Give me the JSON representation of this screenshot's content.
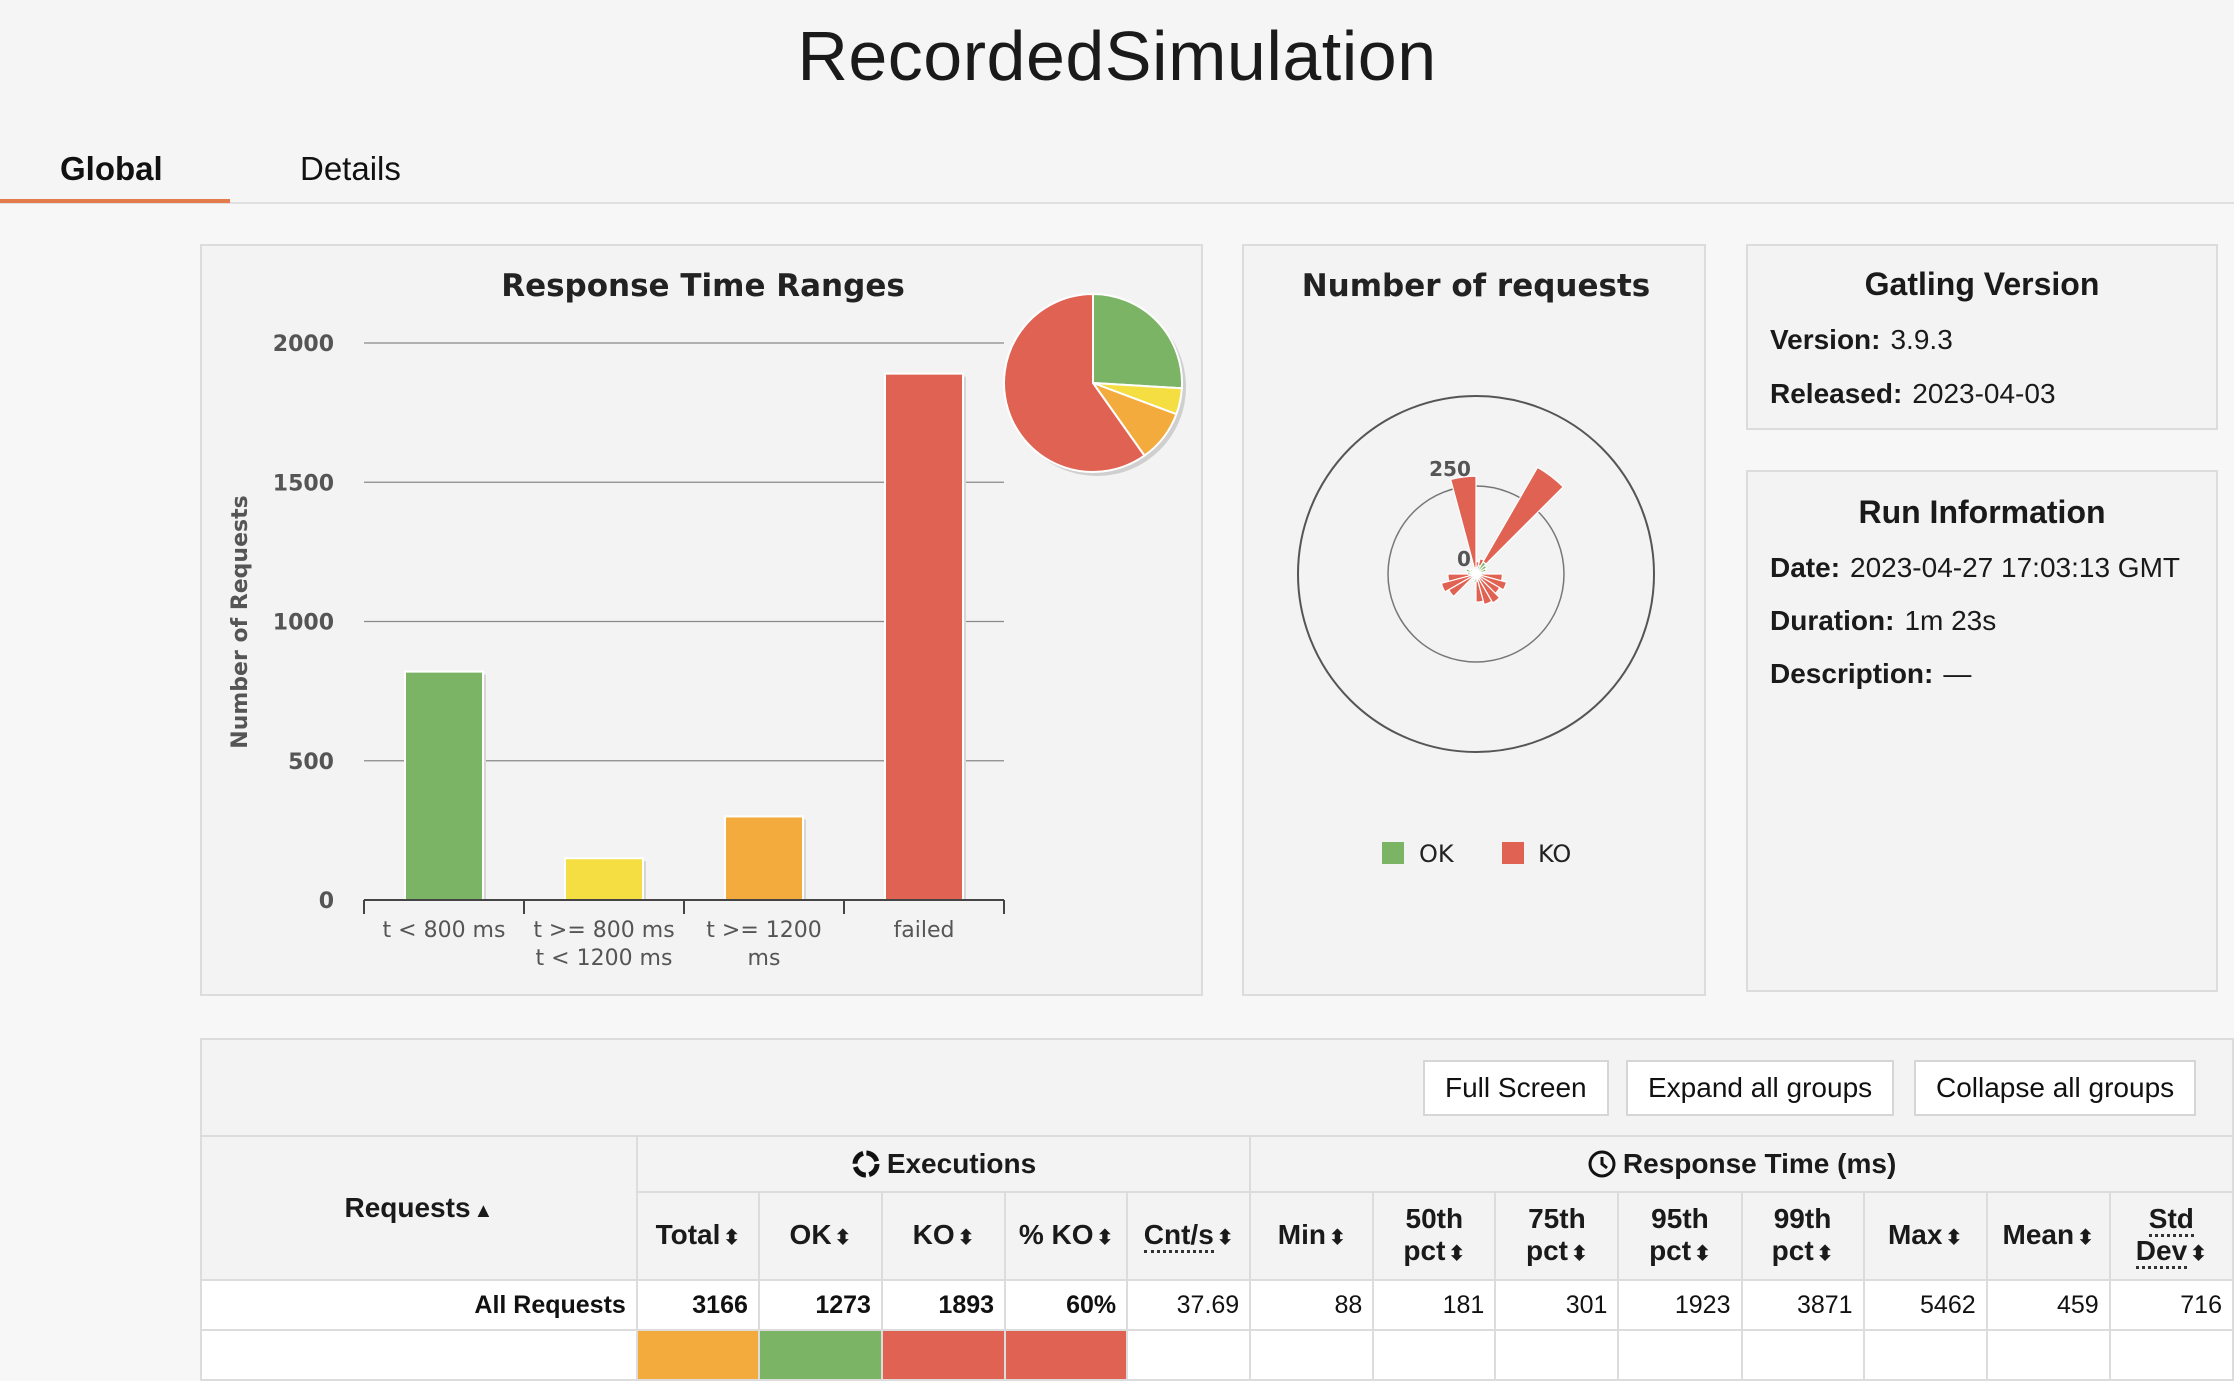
{
  "app": {
    "title": "RecordedSimulation"
  },
  "tabs": [
    {
      "label": "Global"
    },
    {
      "label": "Details"
    }
  ],
  "colors": {
    "ok": "#7bb465",
    "yellow": "#f4de42",
    "orange": "#f2ab3c",
    "ko": "#e06252",
    "accent": "#e37b4c"
  },
  "response_time_ranges": {
    "title": "Response Time Ranges",
    "ylabel": "Number of Requests",
    "yticks": [
      "0",
      "500",
      "1000",
      "1500",
      "2000"
    ],
    "categories": [
      {
        "line1": "t < 800 ms",
        "line2": ""
      },
      {
        "line1": "t >= 800 ms",
        "line2": "t < 1200 ms"
      },
      {
        "line1": "t >= 1200",
        "line2": "ms"
      },
      {
        "line1": "failed",
        "line2": ""
      }
    ]
  },
  "number_of_requests": {
    "title": "Number of requests",
    "axis_labels": [
      "250",
      "0"
    ],
    "legend": [
      {
        "label": "OK",
        "color": "#7bb465"
      },
      {
        "label": "KO",
        "color": "#e06252"
      }
    ]
  },
  "gatling_version": {
    "title": "Gatling Version",
    "version_label": "Version:",
    "version": "3.9.3",
    "released_label": "Released:",
    "released": "2023-04-03"
  },
  "run_info": {
    "title": "Run Information",
    "date_label": "Date:",
    "date": "2023-04-27 17:03:13 GMT",
    "duration_label": "Duration:",
    "duration": "1m 23s",
    "description_label": "Description:",
    "description": "—"
  },
  "buttons": {
    "full_screen": "Full Screen",
    "expand_all": "Expand all groups",
    "collapse_all": "Collapse all groups"
  },
  "table": {
    "requests_header": "Requests",
    "executions_header": "Executions",
    "response_time_header": "Response Time (ms)",
    "columns": {
      "total": "Total",
      "ok": "OK",
      "ko": "KO",
      "pct_ko": "% KO",
      "cnt_s": "Cnt/s",
      "min": "Min",
      "p50a": "50th",
      "p50b": "pct",
      "p75a": "75th",
      "p75b": "pct",
      "p95a": "95th",
      "p95b": "pct",
      "p99a": "99th",
      "p99b": "pct",
      "max": "Max",
      "mean": "Mean",
      "stdA": "Std",
      "stdB": "Dev"
    },
    "rows": [
      {
        "name": "All Requests",
        "total": "3166",
        "ok": "1273",
        "ko": "1893",
        "pct_ko": "60%",
        "cnt_s": "37.69",
        "min": "88",
        "p50": "181",
        "p75": "301",
        "p95": "1923",
        "p99": "3871",
        "max": "5462",
        "mean": "459",
        "std": "716"
      }
    ]
  },
  "chart_data": [
    {
      "type": "bar",
      "title": "Response Time Ranges",
      "categories": [
        "t < 800 ms",
        "t >= 800 ms t < 1200 ms",
        "t >= 1200 ms",
        "failed"
      ],
      "values": [
        820,
        150,
        300,
        1890
      ],
      "colors": [
        "#7bb465",
        "#f4de42",
        "#f2ab3c",
        "#e06252"
      ],
      "xlabel": "",
      "ylabel": "Number of Requests",
      "ylim": [
        0,
        2000
      ],
      "grid": true
    },
    {
      "type": "pie",
      "categories": [
        "t < 800 ms",
        "t >= 800 ms t < 1200 ms",
        "t >= 1200 ms",
        "failed"
      ],
      "values": [
        820,
        150,
        300,
        1890
      ],
      "colors": [
        "#7bb465",
        "#f4de42",
        "#f2ab3c",
        "#e06252"
      ]
    },
    {
      "type": "polar",
      "title": "Number of requests",
      "axis_labels": [
        "250",
        "0"
      ],
      "series": [
        {
          "name": "OK",
          "color": "#7bb465",
          "values": [
            20,
            25,
            40,
            35,
            30,
            20,
            15,
            10,
            8,
            10,
            15,
            20,
            25,
            20,
            15,
            10,
            12,
            20,
            25,
            30,
            20,
            15,
            12,
            18
          ]
        },
        {
          "name": "KO",
          "color": "#e06252",
          "values": [
            15,
            20,
            310,
            0,
            0,
            0,
            60,
            80,
            70,
            85,
            75,
            60,
            0,
            0,
            0,
            80,
            90,
            60,
            0,
            0,
            0,
            0,
            0,
            260
          ]
        }
      ]
    }
  ]
}
